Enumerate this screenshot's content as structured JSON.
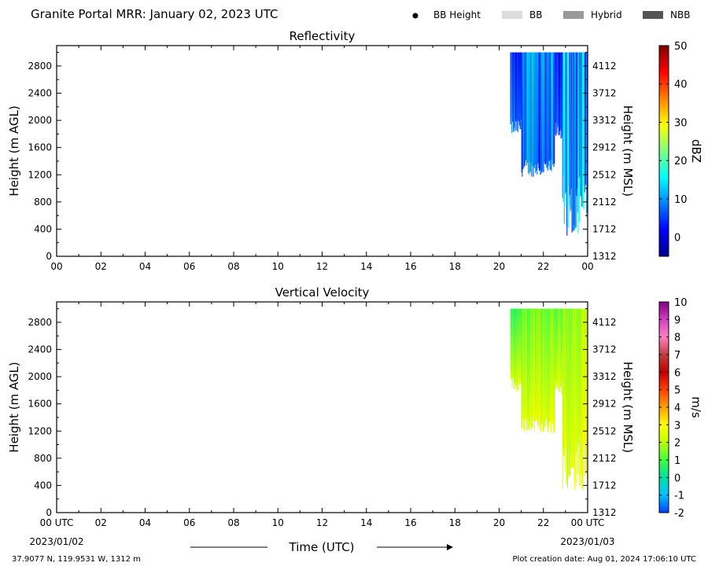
{
  "header": {
    "title": "Granite Portal MRR:  January 02, 2023 UTC",
    "legend": [
      {
        "label": "BB Height",
        "marker": "dot",
        "color": "#000000"
      },
      {
        "label": "BB",
        "marker": "box",
        "color": "#dcdcdc"
      },
      {
        "label": "Hybrid",
        "marker": "box",
        "color": "#999999"
      },
      {
        "label": "NBB",
        "marker": "box",
        "color": "#555555"
      }
    ]
  },
  "footer": {
    "location": "37.9077 N, 119.9531 W, 1312 m",
    "creation": "Plot creation date: Aug 01, 2024 17:06:10 UTC",
    "xlabel": "Time (UTC)",
    "start_date": "2023/01/02",
    "end_date": "2023/01/03"
  },
  "chart_data": [
    {
      "type": "heatmap",
      "title": "Reflectivity",
      "ylabel": "Height (m AGL)",
      "ylabel_right": "Height (m MSL)",
      "x_tick_labels": [
        "00",
        "02",
        "04",
        "06",
        "08",
        "10",
        "12",
        "14",
        "16",
        "18",
        "20",
        "22",
        "00"
      ],
      "x_range_hours": [
        0,
        24
      ],
      "y_ticks": [
        0,
        400,
        800,
        1200,
        1600,
        2000,
        2400,
        2800
      ],
      "y_range": [
        0,
        3100
      ],
      "y_right_ticks": [
        "1312",
        "1712",
        "2112",
        "2512",
        "2912",
        "3312",
        "3712",
        "4112"
      ],
      "colorbar": {
        "label": "dBZ",
        "range": [
          -5,
          50
        ],
        "ticks": [
          0,
          10,
          20,
          30,
          40,
          50
        ],
        "colors": [
          "#00008f",
          "#0000ff",
          "#0080ff",
          "#00ffff",
          "#80ff80",
          "#ffff00",
          "#ff8000",
          "#ff0000",
          "#800000"
        ]
      },
      "echo_segments": [
        {
          "start_hour": 20.5,
          "end_hour": 21.0,
          "bottom_m": 1900,
          "top_m": 3000,
          "dbz_range": [
            -3,
            8
          ]
        },
        {
          "start_hour": 21.0,
          "end_hour": 22.5,
          "bottom_m": 1300,
          "top_m": 3000,
          "dbz_range": [
            2,
            14
          ]
        },
        {
          "start_hour": 22.5,
          "end_hour": 22.85,
          "bottom_m": 1850,
          "top_m": 3000,
          "dbz_range": [
            -2,
            6
          ]
        },
        {
          "start_hour": 22.85,
          "end_hour": 24.0,
          "bottom_m": 300,
          "top_m": 3000,
          "dbz_range": [
            0,
            16
          ]
        }
      ]
    },
    {
      "type": "heatmap",
      "title": "Vertical Velocity",
      "ylabel": "Height (m AGL)",
      "ylabel_right": "Height (m MSL)",
      "x_tick_labels": [
        "00 UTC",
        "02",
        "04",
        "06",
        "08",
        "10",
        "12",
        "14",
        "16",
        "18",
        "20",
        "22",
        "00 UTC"
      ],
      "x_range_hours": [
        0,
        24
      ],
      "y_ticks": [
        0,
        400,
        800,
        1200,
        1600,
        2000,
        2400,
        2800
      ],
      "y_range": [
        0,
        3100
      ],
      "y_right_ticks": [
        "1312",
        "1712",
        "2112",
        "2512",
        "2912",
        "3312",
        "3712",
        "4112"
      ],
      "colorbar": {
        "label": "m/s",
        "range": [
          -2,
          10
        ],
        "ticks": [
          "-2",
          "-1",
          "0",
          "1",
          "2",
          "3",
          "4",
          "5",
          "6",
          "7",
          "8",
          "9",
          "10"
        ],
        "colors": [
          "#0040ff",
          "#00c0ff",
          "#00e0a0",
          "#40ff40",
          "#c0ff00",
          "#ffff00",
          "#ffa000",
          "#ff4000",
          "#c00000",
          "#c04040",
          "#ff80c0",
          "#d040c0",
          "#800080"
        ]
      },
      "echo_segments": [
        {
          "start_hour": 20.5,
          "end_hour": 21.0,
          "bottom_m": 1900,
          "top_m": 3000,
          "ms_range": [
            0.3,
            1.2
          ]
        },
        {
          "start_hour": 21.0,
          "end_hour": 22.5,
          "bottom_m": 1300,
          "top_m": 3000,
          "ms_range": [
            0.6,
            1.6
          ]
        },
        {
          "start_hour": 22.5,
          "end_hour": 22.85,
          "bottom_m": 1850,
          "top_m": 3000,
          "ms_range": [
            0.8,
            1.8
          ]
        },
        {
          "start_hour": 22.85,
          "end_hour": 24.0,
          "bottom_m": 300,
          "top_m": 3000,
          "ms_range": [
            1.0,
            2.3
          ]
        }
      ]
    }
  ]
}
